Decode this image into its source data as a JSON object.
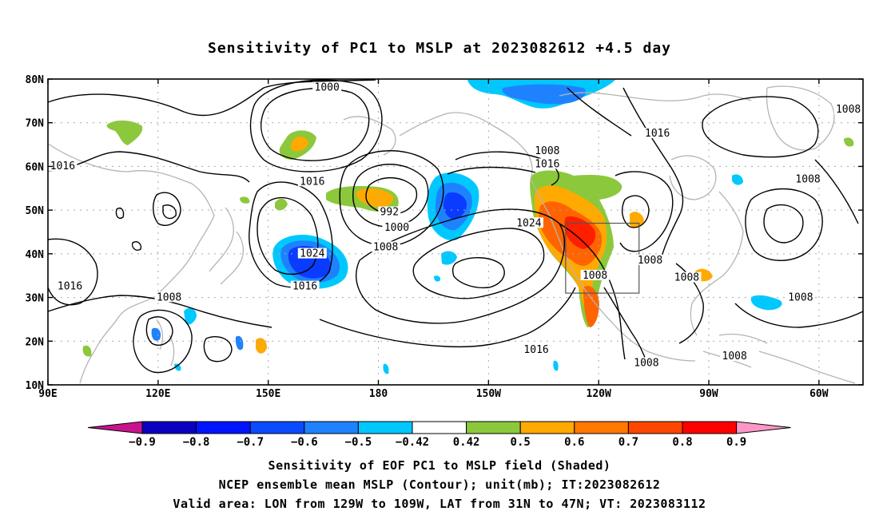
{
  "title": "Sensitivity of PC1 to MSLP at 2023082612 +4.5 day",
  "captions": [
    "Sensitivity of EOF PC1 to MSLP field (Shaded)",
    "NCEP ensemble mean MSLP (Contour); unit(mb); IT:2023082612",
    "Valid area: LON from 129W to 109W, LAT from 31N to 47N; VT: 2023083112"
  ],
  "map": {
    "lon_range": [
      90,
      312
    ],
    "lat_range": [
      10,
      80
    ],
    "lon_ticks": [
      {
        "lon": 90,
        "label": "90E"
      },
      {
        "lon": 120,
        "label": "120E"
      },
      {
        "lon": 150,
        "label": "150E"
      },
      {
        "lon": 180,
        "label": "180"
      },
      {
        "lon": 210,
        "label": "150W"
      },
      {
        "lon": 240,
        "label": "120W"
      },
      {
        "lon": 270,
        "label": "90W"
      },
      {
        "lon": 300,
        "label": "60W"
      }
    ],
    "lat_ticks": [
      {
        "lat": 80,
        "label": "80N"
      },
      {
        "lat": 70,
        "label": "70N"
      },
      {
        "lat": 60,
        "label": "60N"
      },
      {
        "lat": 50,
        "label": "50N"
      },
      {
        "lat": 40,
        "label": "40N"
      },
      {
        "lat": 30,
        "label": "30N"
      },
      {
        "lat": 20,
        "label": "20N"
      },
      {
        "lat": 10,
        "label": "10N"
      }
    ],
    "valid_area": {
      "lon_min": 231,
      "lon_max": 251,
      "lat_min": 31,
      "lat_max": 47
    }
  },
  "colorbar": {
    "labels": [
      "−0.9",
      "−0.8",
      "−0.7",
      "−0.6",
      "−0.5",
      "−0.42",
      "0.42",
      "0.5",
      "0.6",
      "0.7",
      "0.8",
      "0.9"
    ],
    "colors": [
      "#0a00bf",
      "#0014ff",
      "#0a4bff",
      "#1e82ff",
      "#00c8ff",
      "#ffffff",
      "#8cc83c",
      "#ffaa00",
      "#ff7800",
      "#ff4600",
      "#ff0000"
    ],
    "under_color": "#c8148c",
    "over_color": "#ff96c8"
  },
  "shading_colors": {
    "neg_strong": "#0a3cff",
    "neg_mid": "#1e82ff",
    "neg_weak": "#00c8ff",
    "pos_weak": "#8cc83c",
    "pos_mid": "#ffaa00",
    "pos_strong": "#ff6400",
    "pos_max": "#ff1e00"
  },
  "contour_labels": [
    {
      "text": "1000",
      "lon": 166,
      "lat": 77.5
    },
    {
      "text": "1016",
      "lon": 94,
      "lat": 59.5
    },
    {
      "text": "1016",
      "lon": 162,
      "lat": 56
    },
    {
      "text": "992",
      "lon": 183,
      "lat": 49
    },
    {
      "text": "1000",
      "lon": 185,
      "lat": 45.5
    },
    {
      "text": "1008",
      "lon": 182,
      "lat": 41
    },
    {
      "text": "1024",
      "lon": 162,
      "lat": 39.5
    },
    {
      "text": "1016",
      "lon": 160,
      "lat": 32
    },
    {
      "text": "1016",
      "lon": 96,
      "lat": 32
    },
    {
      "text": "1008",
      "lon": 123,
      "lat": 29.5
    },
    {
      "text": "1008",
      "lon": 226,
      "lat": 63
    },
    {
      "text": "1016",
      "lon": 226,
      "lat": 60
    },
    {
      "text": "1024",
      "lon": 221,
      "lat": 46.5
    },
    {
      "text": "1016",
      "lon": 223,
      "lat": 17.5
    },
    {
      "text": "1008",
      "lon": 239,
      "lat": 34.5
    },
    {
      "text": "1008",
      "lon": 254,
      "lat": 38
    },
    {
      "text": "1008",
      "lon": 264,
      "lat": 34
    },
    {
      "text": "1008",
      "lon": 253,
      "lat": 14.5
    },
    {
      "text": "1008",
      "lon": 277,
      "lat": 16
    },
    {
      "text": "1016",
      "lon": 256,
      "lat": 67
    },
    {
      "text": "1008",
      "lon": 308,
      "lat": 72.5
    },
    {
      "text": "1008",
      "lon": 297,
      "lat": 56.5
    },
    {
      "text": "1008",
      "lon": 295,
      "lat": 29.5
    }
  ]
}
